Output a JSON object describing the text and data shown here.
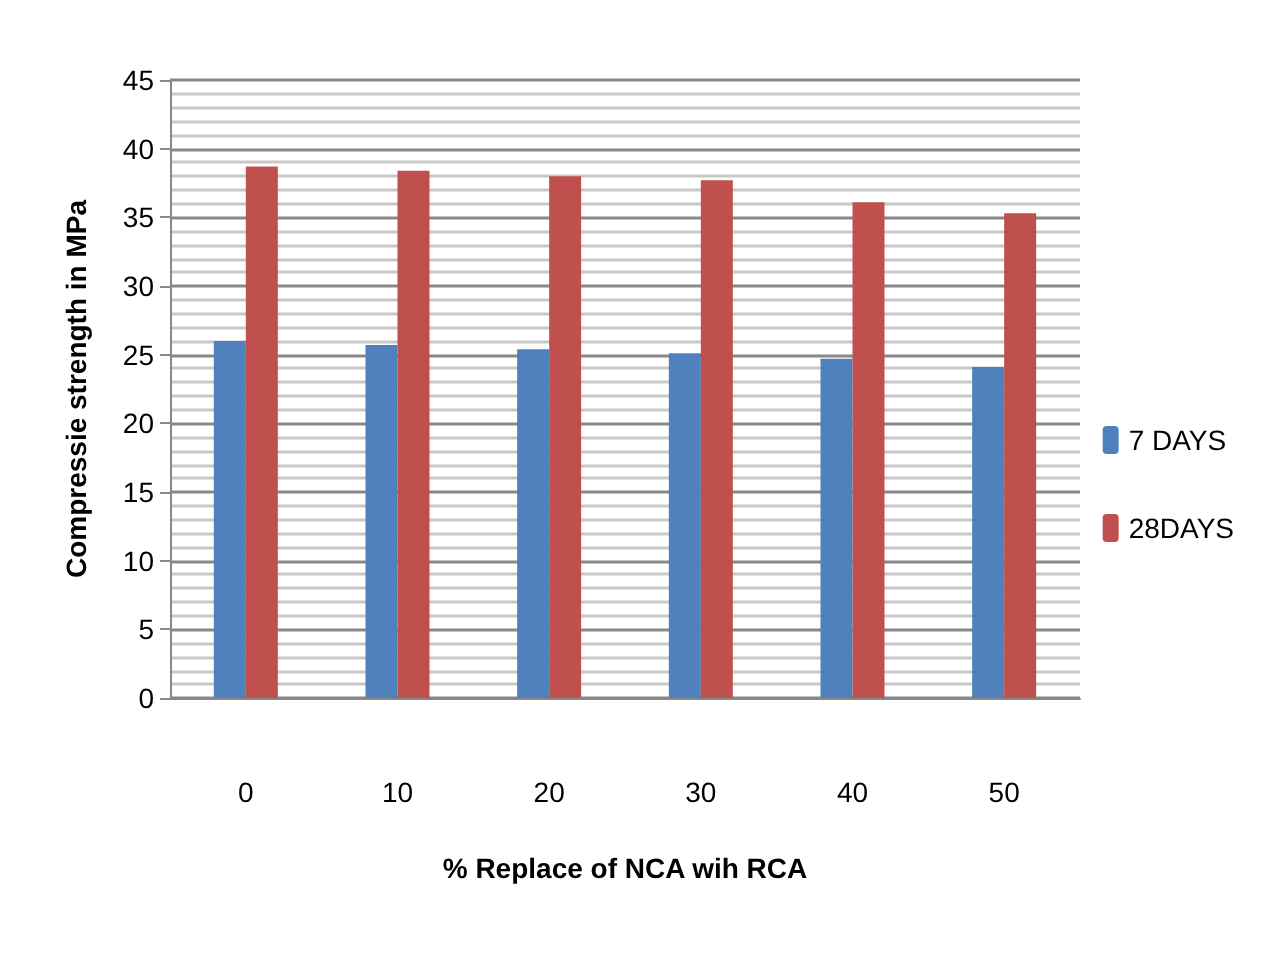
{
  "chart_data": {
    "type": "bar",
    "xlabel": "% Replace of NCA wih RCA",
    "ylabel": "Compressie strength in MPa",
    "categories": [
      "0",
      "10",
      "20",
      "30",
      "40",
      "50"
    ],
    "series": [
      {
        "name": "7 DAYS",
        "color": "#4f81bd",
        "values": [
          26.0,
          25.7,
          25.4,
          25.1,
          24.7,
          24.1
        ]
      },
      {
        "name": "28DAYS",
        "color": "#c0504d",
        "values": [
          38.7,
          38.4,
          38.0,
          37.7,
          36.1,
          35.3
        ]
      }
    ],
    "ylim": [
      0,
      45
    ],
    "yticks": [
      0,
      5,
      10,
      15,
      20,
      25,
      30,
      35,
      40,
      45
    ],
    "grid": "y",
    "legend": "right"
  }
}
